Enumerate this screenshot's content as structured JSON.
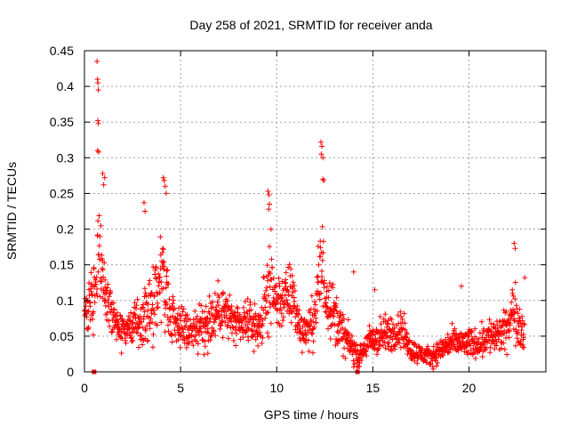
{
  "chart_data": {
    "type": "scatter",
    "title": "Day 258 of 2021, SRMTID for receiver anda",
    "xlabel": "GPS time / hours",
    "ylabel": "SRMTID / TECUs",
    "xlim": [
      0,
      24
    ],
    "ylim": [
      0,
      0.45
    ],
    "grid": true,
    "marker_color": "#ff0000",
    "x_ticks": [
      0,
      5,
      10,
      15,
      20
    ],
    "x_tick_labels": [
      "0",
      "5",
      "10",
      "15",
      "20"
    ],
    "y_ticks": [
      0,
      0.05,
      0.1,
      0.15,
      0.2,
      0.25,
      0.3,
      0.35,
      0.4,
      0.45
    ],
    "y_tick_labels": [
      "0",
      "0.05",
      "0.1",
      "0.15",
      "0.2",
      "0.25",
      "0.3",
      "0.35",
      "0.4",
      "0.45"
    ],
    "profile_hours": [
      0,
      0.3,
      0.6,
      0.75,
      1.0,
      1.3,
      1.6,
      2.0,
      2.5,
      3.0,
      3.5,
      3.8,
      4.1,
      4.4,
      4.8,
      5.2,
      5.5,
      6.0,
      6.5,
      7.0,
      7.5,
      8.0,
      8.5,
      9.0,
      9.3,
      9.6,
      9.9,
      10.3,
      10.8,
      11.2,
      11.7,
      12.0,
      12.3,
      12.6,
      13.0,
      13.5,
      14.0,
      14.3,
      14.7,
      15.0,
      15.5,
      16.0,
      16.5,
      17.0,
      17.5,
      18.0,
      18.5,
      19.0,
      19.5,
      20.0,
      20.5,
      21.0,
      21.5,
      22.0,
      22.3,
      22.6,
      22.9
    ],
    "profile_median": [
      0.08,
      0.09,
      0.13,
      0.17,
      0.12,
      0.09,
      0.07,
      0.06,
      0.065,
      0.07,
      0.09,
      0.13,
      0.14,
      0.09,
      0.07,
      0.06,
      0.06,
      0.06,
      0.07,
      0.09,
      0.08,
      0.06,
      0.07,
      0.06,
      0.08,
      0.13,
      0.1,
      0.1,
      0.11,
      0.06,
      0.06,
      0.08,
      0.15,
      0.11,
      0.08,
      0.05,
      0.03,
      0.02,
      0.04,
      0.045,
      0.05,
      0.055,
      0.06,
      0.03,
      0.025,
      0.02,
      0.03,
      0.04,
      0.04,
      0.04,
      0.04,
      0.05,
      0.05,
      0.06,
      0.09,
      0.07,
      0.05
    ],
    "profile_spread": [
      0.025,
      0.03,
      0.05,
      0.06,
      0.035,
      0.025,
      0.02,
      0.02,
      0.02,
      0.025,
      0.035,
      0.05,
      0.055,
      0.03,
      0.025,
      0.02,
      0.02,
      0.025,
      0.03,
      0.03,
      0.025,
      0.02,
      0.02,
      0.025,
      0.03,
      0.05,
      0.035,
      0.03,
      0.035,
      0.02,
      0.02,
      0.03,
      0.06,
      0.035,
      0.03,
      0.02,
      0.015,
      0.01,
      0.015,
      0.02,
      0.02,
      0.02,
      0.02,
      0.012,
      0.01,
      0.01,
      0.012,
      0.015,
      0.015,
      0.015,
      0.015,
      0.02,
      0.02,
      0.02,
      0.03,
      0.025,
      0.02
    ],
    "peak_points": [
      {
        "x": 0.65,
        "y": 0.435
      },
      {
        "x": 0.68,
        "y": 0.41
      },
      {
        "x": 0.7,
        "y": 0.405
      },
      {
        "x": 0.72,
        "y": 0.395
      },
      {
        "x": 0.7,
        "y": 0.352
      },
      {
        "x": 0.72,
        "y": 0.348
      },
      {
        "x": 0.68,
        "y": 0.31
      },
      {
        "x": 0.74,
        "y": 0.308
      },
      {
        "x": 0.95,
        "y": 0.278
      },
      {
        "x": 1.05,
        "y": 0.272
      },
      {
        "x": 1.0,
        "y": 0.262
      },
      {
        "x": 3.1,
        "y": 0.237
      },
      {
        "x": 3.15,
        "y": 0.225
      },
      {
        "x": 4.1,
        "y": 0.272
      },
      {
        "x": 4.15,
        "y": 0.268
      },
      {
        "x": 4.2,
        "y": 0.26
      },
      {
        "x": 4.25,
        "y": 0.25
      },
      {
        "x": 9.55,
        "y": 0.253
      },
      {
        "x": 9.6,
        "y": 0.248
      },
      {
        "x": 9.62,
        "y": 0.235
      },
      {
        "x": 9.58,
        "y": 0.228
      },
      {
        "x": 12.3,
        "y": 0.322
      },
      {
        "x": 12.35,
        "y": 0.316
      },
      {
        "x": 12.32,
        "y": 0.305
      },
      {
        "x": 12.4,
        "y": 0.3
      },
      {
        "x": 12.4,
        "y": 0.27
      },
      {
        "x": 12.45,
        "y": 0.268
      },
      {
        "x": 22.35,
        "y": 0.18
      },
      {
        "x": 22.4,
        "y": 0.173
      },
      {
        "x": 22.9,
        "y": 0.132
      },
      {
        "x": 19.6,
        "y": 0.12
      },
      {
        "x": 15.1,
        "y": 0.115
      },
      {
        "x": 14.0,
        "y": 0.14
      }
    ],
    "zero_points": [
      {
        "x": 0.5,
        "y": 0.0
      },
      {
        "x": 14.2,
        "y": 0.0
      }
    ]
  }
}
